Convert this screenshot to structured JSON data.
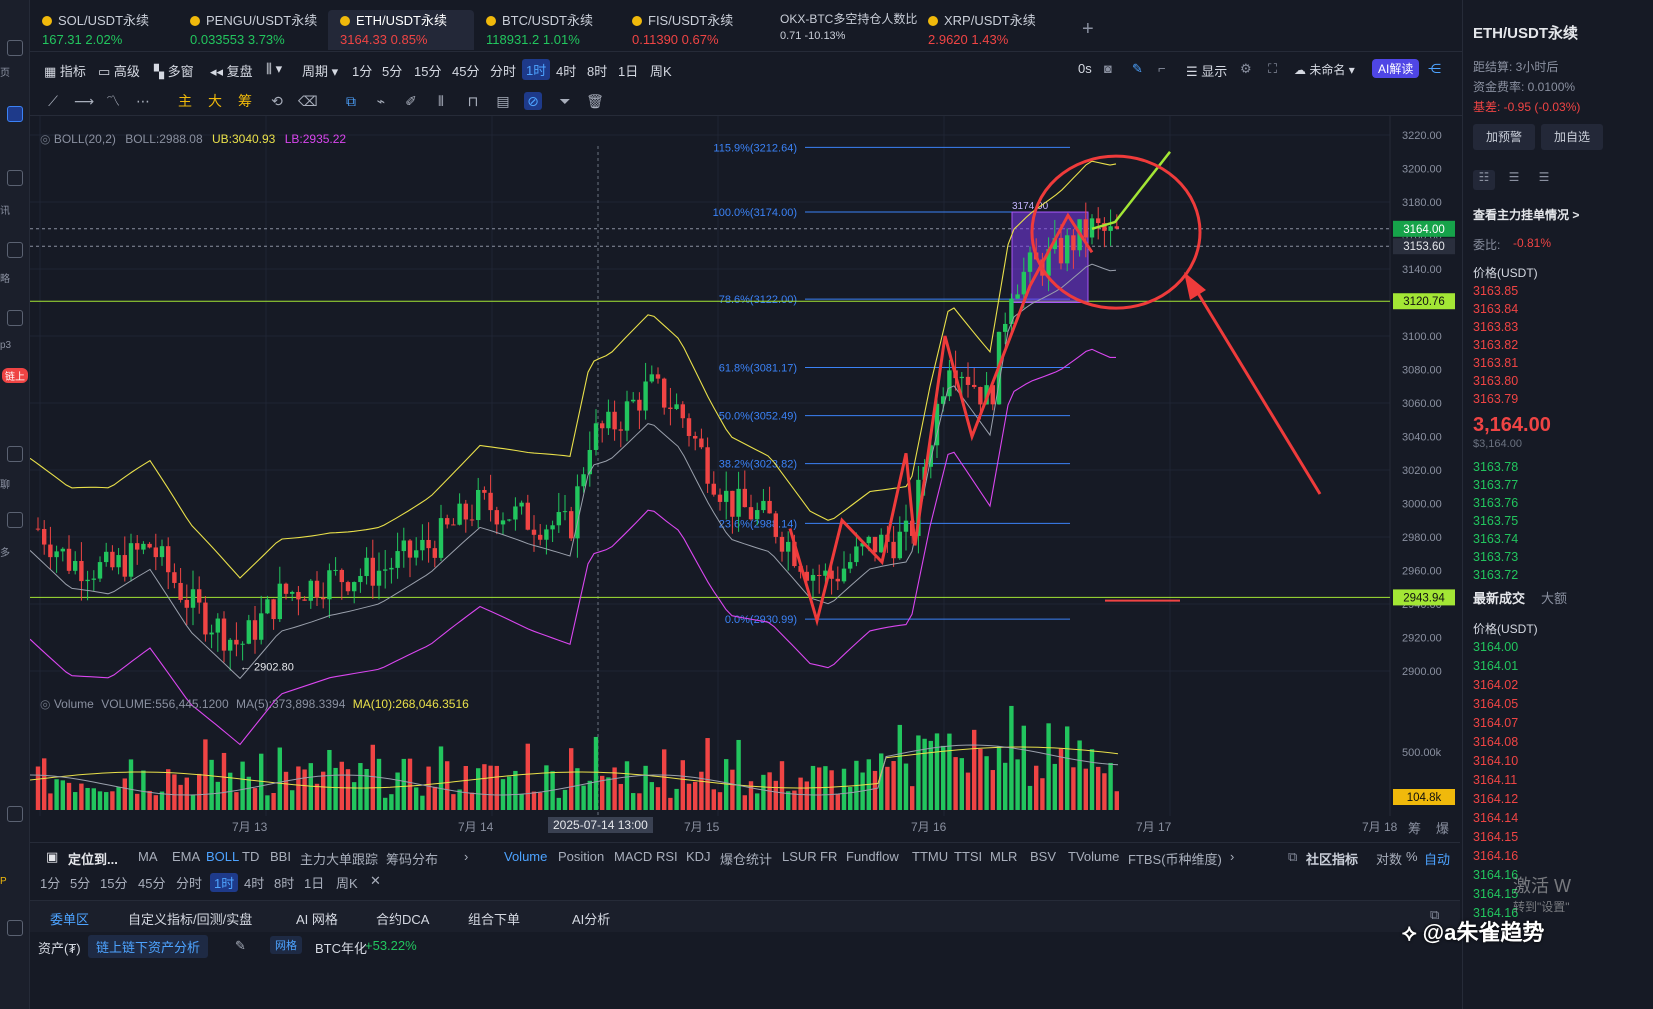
{
  "tabs": [
    {
      "name": "SOL/USDT永续",
      "price": "167.31",
      "change": "2.02%",
      "dir": "up"
    },
    {
      "name": "PENGU/USDT永续",
      "price": "0.033553",
      "change": "3.73%",
      "dir": "up"
    },
    {
      "name": "ETH/USDT永续",
      "price": "3164.33",
      "change": "0.85%",
      "dir": "dn"
    },
    {
      "name": "BTC/USDT永续",
      "price": "118931.2",
      "change": "1.01%",
      "dir": "up"
    },
    {
      "name": "FIS/USDT永续",
      "price": "0.11390",
      "change": "0.67%",
      "dir": "dn"
    },
    {
      "name": "OKX-BTC多空持仓人数比",
      "price": "0.71",
      "change": "-10.13%",
      "dir": "none"
    },
    {
      "name": "XRP/USDT永续",
      "price": "2.9620",
      "change": "1.43%",
      "dir": "dn"
    }
  ],
  "toolbar": {
    "indicator": "指标",
    "advanced": "高级",
    "multi": "多窗",
    "replay": "复盘",
    "period": "周期",
    "intervals": [
      "1分",
      "5分",
      "15分",
      "45分",
      "分时",
      "1时",
      "4时",
      "8时",
      "1日",
      "周K"
    ],
    "active_interval": "1时",
    "display": "显示",
    "unnamed": "未命名",
    "ai": "AI解读",
    "zero": "0s"
  },
  "drawbar": {
    "main": "主",
    "big": "大",
    "chip": "筹"
  },
  "boll": {
    "label": "BOLL(20,2)",
    "mid": "BOLL:2988.08",
    "ub": "UB:3040.93",
    "lb": "LB:2935.22"
  },
  "volume": {
    "label": "Volume",
    "vol": "VOLUME:556,445.1200",
    "ma5": "MA(5):373,898.3394",
    "ma10": "MA(10):268,046.3516"
  },
  "price_axis": [
    "3220.00",
    "3200.00",
    "3180.00",
    "3160.00",
    "3140.00",
    "3120.00",
    "3100.00",
    "3080.00",
    "3060.00",
    "3040.00",
    "3020.00",
    "3000.00",
    "2980.00",
    "2960.00",
    "2940.00",
    "2920.00",
    "2900.00"
  ],
  "price_tags": {
    "last": "3164.00",
    "cross": "3153.60",
    "line1": "3120.76",
    "line2": "2943.94",
    "vol_axis": "500.00k",
    "vol_tag": "104.8k"
  },
  "fib": [
    {
      "label": "115.9%(3212.64)"
    },
    {
      "label": "100.0%(3174.00)"
    },
    {
      "label": "78.6%(3122.00)"
    },
    {
      "label": "61.8%(3081.17)"
    },
    {
      "label": "50.0%(3052.49)"
    },
    {
      "label": "38.2%(3023.82)"
    },
    {
      "label": "23.6%(2988.14)"
    },
    {
      "label": "0.0%(2930.99)"
    }
  ],
  "box_label": "3174.00",
  "low_label": "← 2902.80",
  "xaxis": {
    "labels": [
      "7月 13",
      "7月 14",
      "7月 15",
      "7月 16",
      "7月 17",
      "7月 18"
    ],
    "cursor": "2025-07-14 13:00",
    "r1": "筹",
    "r2": "爆"
  },
  "ind_row": {
    "locate": "定位到...",
    "items": [
      "MA",
      "EMA",
      "BOLL",
      "TD",
      "BBI",
      "主力大单跟踪",
      "筹码分布"
    ],
    "items2": [
      "Volume",
      "Position",
      "MACD",
      "RSI",
      "KDJ",
      "爆仓统计",
      "LSUR",
      "FR",
      "Fundflow",
      "TTMU",
      "TTSI",
      "MLR",
      "BSV",
      "TVolume",
      "FTBS(币种维度)"
    ],
    "community": "社区指标",
    "log": "对数",
    "pct": "%",
    "auto": "自动"
  },
  "ind_row2": [
    "1分",
    "5分",
    "15分",
    "45分",
    "分时",
    "1时",
    "4时",
    "8时",
    "1日",
    "周K"
  ],
  "bottom_tabs": [
    "委单区",
    "自定义指标/回测/实盘",
    "AI 网格",
    "合约DCA",
    "组合下单",
    "AI分析"
  ],
  "bottom_bar": {
    "asset": "资产(₮)",
    "analysis": "链上链下资产分析",
    "grid": "网格",
    "btc": "BTC年化",
    "btc_val": "+53.22%"
  },
  "right": {
    "title": "ETH/USDT永续",
    "settle": "距结算: 3小时后",
    "funding": "资金费率: 0.0100%",
    "basis": "基差: -0.95 (-0.03%)",
    "btn1": "加预警",
    "btn2": "加自选",
    "orders": "查看主力挂单情况 >",
    "ratio_label": "委比:",
    "ratio": "-0.81%",
    "price_hdr": "价格(USDT)",
    "asks": [
      "3163.85",
      "3163.84",
      "3163.83",
      "3163.82",
      "3163.81",
      "3163.80",
      "3163.79"
    ],
    "mid": "3,164.00",
    "mid_sub": "$3,164.00",
    "bids": [
      "3163.78",
      "3163.77",
      "3163.76",
      "3163.75",
      "3163.74",
      "3163.73",
      "3163.72"
    ],
    "trades_tab": "最新成交",
    "big_tab": "大额",
    "trades": [
      "3164.00",
      "3164.01",
      "3164.02",
      "3164.05",
      "3164.07",
      "3164.08",
      "3164.10",
      "3164.11",
      "3164.12",
      "3164.14",
      "3164.15",
      "3164.16",
      "3164.16",
      "3164.15",
      "3164.16"
    ],
    "watermark": "激活 W",
    "watermark2": "转到\"设置\"",
    "author": "@a朱雀趋势"
  },
  "left_rail": {
    "l1": "页",
    "l2": "讯",
    "l3": "略",
    "l4": "p3",
    "l5": "链上",
    "l6": "聊",
    "l7": "多",
    "l8": "P"
  },
  "colors": {
    "up": "#22c55e",
    "down": "#ef4444",
    "boll_up": "#e9e04a",
    "boll_mid": "#9aa0ac",
    "boll_lb": "#d946ef",
    "fib": "#3b82f6",
    "hline": "#a3e635",
    "annot": "#ef3b3b"
  }
}
